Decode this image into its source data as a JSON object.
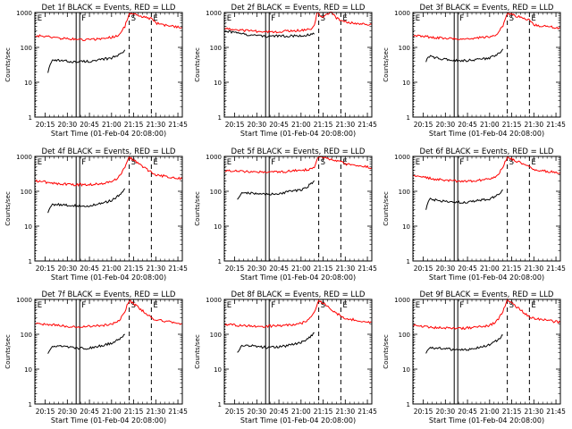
{
  "figure": {
    "start_time_label": "Start Time (01-Feb-04 20:08:00)",
    "y_label": "Counts/sec",
    "y_ticks": [
      {
        "value": 1,
        "label": "1"
      },
      {
        "value": 10,
        "label": "10"
      },
      {
        "value": 100,
        "label": "100"
      },
      {
        "value": 1000,
        "label": "1000"
      }
    ],
    "x_ticks": [
      {
        "value": 20.25,
        "label": "20:15"
      },
      {
        "value": 20.5,
        "label": "20:30"
      },
      {
        "value": 20.75,
        "label": "20:45"
      },
      {
        "value": 21.0,
        "label": "21:00"
      },
      {
        "value": 21.25,
        "label": "21:15"
      },
      {
        "value": 21.5,
        "label": "21:30"
      },
      {
        "value": 21.75,
        "label": "21:45"
      }
    ],
    "colors": {
      "events": "#000000",
      "lld": "#ff0000",
      "axes": "#000000"
    }
  },
  "chart_data": [
    {
      "type": "line",
      "title": "Det 1f BLACK = Events, RED = LLD",
      "xlabel": "Start Time (01-Feb-04 20:08:00)",
      "ylabel": "Counts/sec",
      "y_scale": "log",
      "ylim": [
        1,
        1000
      ],
      "xlim": [
        20.133,
        21.8
      ],
      "markers": [
        {
          "label": "E",
          "x": 20.14,
          "style": "dotted"
        },
        {
          "label": "F",
          "x": 20.62,
          "style": "double"
        },
        {
          "label": "S",
          "x": 21.2,
          "style": "dashed"
        },
        {
          "label": "E",
          "x": 21.45,
          "style": "dashed"
        }
      ],
      "series": [
        {
          "color": "#000000",
          "x": [
            20.28,
            20.32,
            20.4,
            20.5,
            20.6,
            20.7,
            20.8,
            20.9,
            21.0,
            21.08,
            21.15
          ],
          "y": [
            20,
            40,
            42,
            40,
            38,
            40,
            40,
            45,
            50,
            60,
            85
          ]
        },
        {
          "color": "#ff0000",
          "x": [
            20.14,
            20.2,
            20.3,
            20.4,
            20.5,
            20.6,
            20.7,
            20.8,
            20.9,
            21.0,
            21.05,
            21.1,
            21.15,
            21.2,
            21.45,
            21.5,
            21.6,
            21.7,
            21.8
          ],
          "y": [
            220,
            210,
            200,
            185,
            175,
            170,
            165,
            170,
            180,
            195,
            210,
            250,
            400,
            950,
            650,
            500,
            430,
            400,
            380
          ]
        }
      ]
    },
    {
      "type": "line",
      "title": "Det 2f BLACK = Events, RED = LLD",
      "xlabel": "Start Time (01-Feb-04 20:08:00)",
      "ylabel": "Counts/sec",
      "y_scale": "log",
      "ylim": [
        1,
        1000
      ],
      "xlim": [
        20.133,
        21.8
      ],
      "markers": [
        {
          "label": "E",
          "x": 20.14,
          "style": "dotted"
        },
        {
          "label": "F",
          "x": 20.62,
          "style": "double"
        },
        {
          "label": "S",
          "x": 21.2,
          "style": "dashed"
        },
        {
          "label": "E",
          "x": 21.45,
          "style": "dashed"
        }
      ],
      "series": [
        {
          "color": "#000000",
          "x": [
            20.14,
            20.3,
            20.4,
            20.5,
            20.6,
            20.7,
            20.8,
            20.9,
            21.0,
            21.1,
            21.15
          ],
          "y": [
            300,
            250,
            230,
            220,
            210,
            210,
            210,
            215,
            220,
            230,
            240
          ]
        },
        {
          "color": "#ff0000",
          "x": [
            20.14,
            20.3,
            20.4,
            20.5,
            20.6,
            20.7,
            20.8,
            20.9,
            21.0,
            21.1,
            21.15,
            21.18,
            21.2,
            21.25,
            21.3,
            21.35,
            21.4,
            21.45,
            21.5,
            21.6,
            21.7,
            21.8
          ],
          "y": [
            350,
            320,
            300,
            290,
            280,
            280,
            290,
            300,
            310,
            330,
            400,
            1000,
            900,
            700,
            900,
            1000,
            700,
            600,
            550,
            500,
            480,
            450
          ]
        }
      ]
    },
    {
      "type": "line",
      "title": "Det 3f BLACK = Events, RED = LLD",
      "xlabel": "Start Time (01-Feb-04 20:08:00)",
      "ylabel": "Counts/sec",
      "y_scale": "log",
      "ylim": [
        1,
        1000
      ],
      "xlim": [
        20.133,
        21.8
      ],
      "markers": [
        {
          "label": "E",
          "x": 20.14,
          "style": "dotted"
        },
        {
          "label": "F",
          "x": 20.62,
          "style": "double"
        },
        {
          "label": "S",
          "x": 21.2,
          "style": "dashed"
        },
        {
          "label": "E",
          "x": 21.45,
          "style": "dashed"
        }
      ],
      "series": [
        {
          "color": "#000000",
          "x": [
            20.28,
            20.32,
            20.4,
            20.5,
            20.6,
            20.7,
            20.8,
            20.9,
            21.0,
            21.08,
            21.15
          ],
          "y": [
            40,
            55,
            50,
            45,
            42,
            42,
            43,
            45,
            50,
            60,
            90
          ]
        },
        {
          "color": "#ff0000",
          "x": [
            20.14,
            20.2,
            20.3,
            20.4,
            20.5,
            20.6,
            20.7,
            20.8,
            20.9,
            21.0,
            21.05,
            21.1,
            21.15,
            21.2,
            21.45,
            21.5,
            21.6,
            21.7,
            21.8
          ],
          "y": [
            220,
            210,
            200,
            190,
            180,
            175,
            175,
            180,
            190,
            200,
            220,
            260,
            420,
            950,
            600,
            450,
            400,
            380,
            360
          ]
        }
      ]
    },
    {
      "type": "line",
      "title": "Det 4f BLACK = Events, RED = LLD",
      "xlabel": "Start Time (01-Feb-04 20:08:00)",
      "ylabel": "Counts/sec",
      "y_scale": "log",
      "ylim": [
        1,
        1000
      ],
      "xlim": [
        20.133,
        21.8
      ],
      "markers": [
        {
          "label": "E",
          "x": 20.14,
          "style": "dotted"
        },
        {
          "label": "F",
          "x": 20.62,
          "style": "double"
        },
        {
          "label": "S",
          "x": 21.2,
          "style": "dashed"
        },
        {
          "label": "E",
          "x": 21.45,
          "style": "dashed"
        }
      ],
      "series": [
        {
          "color": "#000000",
          "x": [
            20.28,
            20.32,
            20.4,
            20.5,
            20.6,
            20.7,
            20.8,
            20.9,
            21.0,
            21.08,
            21.15
          ],
          "y": [
            25,
            40,
            42,
            40,
            38,
            38,
            40,
            45,
            55,
            75,
            120
          ]
        },
        {
          "color": "#ff0000",
          "x": [
            20.14,
            20.2,
            20.3,
            20.4,
            20.5,
            20.6,
            20.7,
            20.8,
            20.9,
            21.0,
            21.05,
            21.1,
            21.15,
            21.2,
            21.45,
            21.5,
            21.6,
            21.7,
            21.8
          ],
          "y": [
            200,
            190,
            175,
            165,
            160,
            155,
            155,
            160,
            170,
            190,
            220,
            300,
            500,
            950,
            350,
            300,
            270,
            250,
            230
          ]
        }
      ]
    },
    {
      "type": "line",
      "title": "Det 5f BLACK = Events, RED = LLD",
      "xlabel": "Start Time (01-Feb-04 20:08:00)",
      "ylabel": "Counts/sec",
      "y_scale": "log",
      "ylim": [
        1,
        1000
      ],
      "xlim": [
        20.133,
        21.8
      ],
      "markers": [
        {
          "label": "E",
          "x": 20.14,
          "style": "dotted"
        },
        {
          "label": "F",
          "x": 20.62,
          "style": "double"
        },
        {
          "label": "S",
          "x": 21.2,
          "style": "dashed"
        },
        {
          "label": "E",
          "x": 21.45,
          "style": "dashed"
        }
      ],
      "series": [
        {
          "color": "#000000",
          "x": [
            20.28,
            20.32,
            20.4,
            20.5,
            20.6,
            20.7,
            20.8,
            20.9,
            21.0,
            21.08,
            21.15
          ],
          "y": [
            60,
            85,
            90,
            85,
            80,
            85,
            90,
            100,
            110,
            140,
            200
          ]
        },
        {
          "color": "#ff0000",
          "x": [
            20.14,
            20.3,
            20.4,
            20.5,
            20.6,
            20.7,
            20.8,
            20.9,
            21.0,
            21.1,
            21.15,
            21.2,
            21.45,
            21.5,
            21.6,
            21.7,
            21.8
          ],
          "y": [
            400,
            380,
            370,
            360,
            350,
            350,
            360,
            380,
            400,
            420,
            500,
            1000,
            700,
            600,
            550,
            520,
            480
          ]
        }
      ]
    },
    {
      "type": "line",
      "title": "Det 6f BLACK = Events, RED = LLD",
      "xlabel": "Start Time (01-Feb-04 20:08:00)",
      "ylabel": "Counts/sec",
      "y_scale": "log",
      "ylim": [
        1,
        1000
      ],
      "xlim": [
        20.133,
        21.8
      ],
      "markers": [
        {
          "label": "E",
          "x": 20.14,
          "style": "dotted"
        },
        {
          "label": "F",
          "x": 20.62,
          "style": "double"
        },
        {
          "label": "S",
          "x": 21.2,
          "style": "dashed"
        },
        {
          "label": "E",
          "x": 21.45,
          "style": "dashed"
        }
      ],
      "series": [
        {
          "color": "#000000",
          "x": [
            20.28,
            20.32,
            20.4,
            20.5,
            20.6,
            20.7,
            20.8,
            20.9,
            21.0,
            21.08,
            21.15
          ],
          "y": [
            30,
            60,
            55,
            50,
            48,
            48,
            50,
            55,
            60,
            75,
            110
          ]
        },
        {
          "color": "#ff0000",
          "x": [
            20.14,
            20.2,
            20.3,
            20.4,
            20.5,
            20.6,
            20.7,
            20.8,
            20.9,
            21.0,
            21.05,
            21.1,
            21.15,
            21.2,
            21.45,
            21.5,
            21.6,
            21.7,
            21.8
          ],
          "y": [
            300,
            260,
            240,
            220,
            210,
            200,
            195,
            200,
            210,
            225,
            250,
            300,
            500,
            950,
            500,
            420,
            380,
            360,
            340
          ]
        }
      ]
    },
    {
      "type": "line",
      "title": "Det 7f BLACK = Events, RED = LLD",
      "xlabel": "Start Time (01-Feb-04 20:08:00)",
      "ylabel": "Counts/sec",
      "y_scale": "log",
      "ylim": [
        1,
        1000
      ],
      "xlim": [
        20.133,
        21.8
      ],
      "markers": [
        {
          "label": "E",
          "x": 20.14,
          "style": "dotted"
        },
        {
          "label": "F",
          "x": 20.62,
          "style": "double"
        },
        {
          "label": "S",
          "x": 21.2,
          "style": "dashed"
        },
        {
          "label": "E",
          "x": 21.45,
          "style": "dashed"
        }
      ],
      "series": [
        {
          "color": "#000000",
          "x": [
            20.28,
            20.32,
            20.4,
            20.5,
            20.6,
            20.7,
            20.8,
            20.9,
            21.0,
            21.08,
            21.15
          ],
          "y": [
            28,
            42,
            45,
            43,
            40,
            40,
            42,
            48,
            55,
            70,
            100
          ]
        },
        {
          "color": "#ff0000",
          "x": [
            20.14,
            20.2,
            20.3,
            20.4,
            20.5,
            20.6,
            20.7,
            20.8,
            20.9,
            21.0,
            21.05,
            21.1,
            21.15,
            21.2,
            21.45,
            21.5,
            21.6,
            21.7,
            21.8
          ],
          "y": [
            210,
            200,
            190,
            180,
            170,
            165,
            165,
            170,
            180,
            195,
            220,
            280,
            450,
            950,
            300,
            260,
            240,
            220,
            200
          ]
        }
      ]
    },
    {
      "type": "line",
      "title": "Det 8f BLACK = Events, RED = LLD",
      "xlabel": "Start Time (01-Feb-04 20:08:00)",
      "ylabel": "Counts/sec",
      "y_scale": "log",
      "ylim": [
        1,
        1000
      ],
      "xlim": [
        20.133,
        21.8
      ],
      "markers": [
        {
          "label": "E",
          "x": 20.14,
          "style": "dotted"
        },
        {
          "label": "F",
          "x": 20.62,
          "style": "double"
        },
        {
          "label": "S",
          "x": 21.2,
          "style": "dashed"
        },
        {
          "label": "E",
          "x": 21.45,
          "style": "dashed"
        }
      ],
      "series": [
        {
          "color": "#000000",
          "x": [
            20.28,
            20.32,
            20.4,
            20.5,
            20.6,
            20.7,
            20.8,
            20.9,
            21.0,
            21.08,
            21.15
          ],
          "y": [
            30,
            45,
            48,
            45,
            42,
            42,
            45,
            50,
            58,
            75,
            110
          ]
        },
        {
          "color": "#ff0000",
          "x": [
            20.14,
            20.2,
            20.3,
            20.4,
            20.5,
            20.6,
            20.7,
            20.8,
            20.9,
            21.0,
            21.05,
            21.1,
            21.15,
            21.2,
            21.45,
            21.5,
            21.6,
            21.7,
            21.8
          ],
          "y": [
            190,
            185,
            180,
            175,
            170,
            170,
            175,
            180,
            190,
            205,
            230,
            290,
            450,
            950,
            330,
            290,
            260,
            240,
            220
          ]
        }
      ]
    },
    {
      "type": "line",
      "title": "Det 9f BLACK = Events, RED = LLD",
      "xlabel": "Start Time (01-Feb-04 20:08:00)",
      "ylabel": "Counts/sec",
      "y_scale": "log",
      "ylim": [
        1,
        1000
      ],
      "xlim": [
        20.133,
        21.8
      ],
      "markers": [
        {
          "label": "E",
          "x": 20.14,
          "style": "dotted"
        },
        {
          "label": "F",
          "x": 20.62,
          "style": "double"
        },
        {
          "label": "S",
          "x": 21.2,
          "style": "dashed"
        },
        {
          "label": "E",
          "x": 21.45,
          "style": "dashed"
        }
      ],
      "series": [
        {
          "color": "#000000",
          "x": [
            20.28,
            20.32,
            20.4,
            20.5,
            20.6,
            20.7,
            20.8,
            20.9,
            21.0,
            21.08,
            21.15
          ],
          "y": [
            28,
            40,
            40,
            38,
            36,
            36,
            38,
            42,
            50,
            65,
            95
          ]
        },
        {
          "color": "#ff0000",
          "x": [
            20.14,
            20.2,
            20.3,
            20.4,
            20.5,
            20.6,
            20.7,
            20.8,
            20.9,
            21.0,
            21.05,
            21.1,
            21.15,
            21.2,
            21.45,
            21.5,
            21.6,
            21.7,
            21.8
          ],
          "y": [
            180,
            170,
            160,
            155,
            150,
            148,
            150,
            155,
            165,
            180,
            210,
            270,
            450,
            950,
            320,
            280,
            260,
            240,
            220
          ]
        }
      ]
    }
  ]
}
